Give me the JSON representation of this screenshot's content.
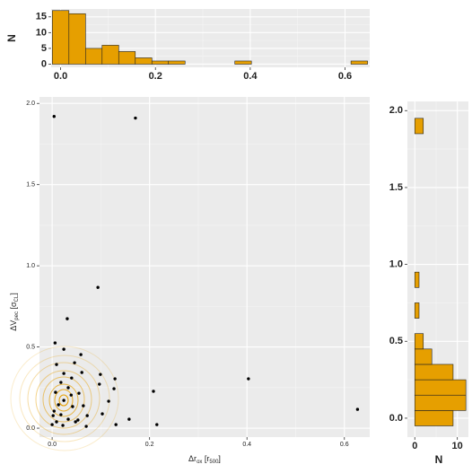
{
  "chart_data": [
    {
      "type": "histogram",
      "orientation": "vertical",
      "color": "#E69F00",
      "bins": [
        -0.0175,
        0.0175,
        0.0525,
        0.0875,
        0.1225,
        0.1575,
        0.1925,
        0.2275,
        0.2625,
        0.2975,
        0.3325,
        0.3675,
        0.4025,
        0.4375,
        0.4725,
        0.5075,
        0.5425,
        0.5775,
        0.6125,
        0.6475
      ],
      "counts": [
        17,
        16,
        5,
        6,
        4,
        2,
        1,
        1,
        0,
        0,
        0,
        1,
        0,
        0,
        0,
        0,
        0,
        0,
        1
      ],
      "xlim": [
        -0.02,
        0.652
      ],
      "xticks": [
        {
          "value": 0,
          "label": "0.0"
        },
        0.2,
        0.4,
        0.6
      ],
      "ylim": [
        -1,
        17.5
      ],
      "yticks": [
        0,
        5,
        10,
        15
      ],
      "ylabel": "N",
      "grid": true
    },
    {
      "type": "scatter",
      "color": "#000000",
      "x": [
        0.004,
        0.171,
        0.094,
        0.031,
        0.006,
        0.403,
        0.627,
        0.208,
        0.215,
        0.158,
        0.131,
        0.129,
        0.127,
        0.099,
        0.097,
        0.116,
        0.103,
        0.07,
        0.059,
        0.024,
        0.009,
        0.024,
        0.046,
        0.04,
        0.061,
        0.018,
        0.033,
        0.007,
        0.039,
        0.055,
        0.013,
        0.024,
        0.042,
        0.064,
        0.004,
        0.018,
        0.033,
        0.009,
        0.0,
        0.053,
        0.072,
        0.022,
        0.002,
        0.048
      ],
      "y": [
        1.92,
        1.91,
        0.867,
        0.674,
        0.525,
        0.304,
        0.116,
        0.227,
        0.022,
        0.055,
        0.022,
        0.304,
        0.243,
        0.331,
        0.271,
        0.166,
        0.088,
        0.011,
        0.453,
        0.486,
        0.392,
        0.337,
        0.403,
        0.309,
        0.343,
        0.282,
        0.249,
        0.221,
        0.204,
        0.215,
        0.144,
        0.171,
        0.133,
        0.138,
        0.105,
        0.083,
        0.055,
        0.039,
        0.022,
        0.05,
        0.077,
        0.017,
        0.077,
        0.039
      ],
      "xlim": [
        -0.026,
        0.652
      ],
      "xticks": [
        {
          "value": 0,
          "label": "0.0"
        },
        0.2,
        0.4,
        0.6
      ],
      "ylim": [
        -0.055,
        2.04
      ],
      "yticks": [
        {
          "value": 0,
          "label": "0.0"
        },
        0.5,
        {
          "value": 1,
          "label": "1.0"
        },
        1.5,
        {
          "value": 2,
          "label": "2.0"
        }
      ],
      "xlabel": [
        "Δr",
        "ox",
        " [r",
        "500",
        "]"
      ],
      "ylabel": [
        "ΔV",
        "pec",
        " [σ",
        "CL",
        "]"
      ],
      "grid": true
    },
    {
      "type": "histogram",
      "orientation": "horizontal",
      "color": "#E69F00",
      "bins": [
        -0.05,
        0.05,
        0.15,
        0.25,
        0.35,
        0.45,
        0.55,
        0.65,
        0.75,
        0.85,
        0.95,
        1.05,
        1.15,
        1.25,
        1.35,
        1.45,
        1.55,
        1.65,
        1.75,
        1.85,
        1.95
      ],
      "counts": [
        9,
        12,
        12,
        9,
        4,
        2,
        0,
        1,
        0,
        1,
        0,
        0,
        0,
        0,
        0,
        0,
        0,
        0,
        0,
        2
      ],
      "xlim": [
        -1.74,
        12.6
      ],
      "xticks": [
        0,
        10
      ],
      "ylim": [
        -0.123,
        2.06
      ],
      "yticks": [
        {
          "value": 0,
          "label": "0.0"
        },
        0.5,
        {
          "value": 1,
          "label": "1.0"
        },
        1.5,
        {
          "value": 2,
          "label": "2.0"
        }
      ],
      "xlabel": "N",
      "grid": true
    }
  ]
}
